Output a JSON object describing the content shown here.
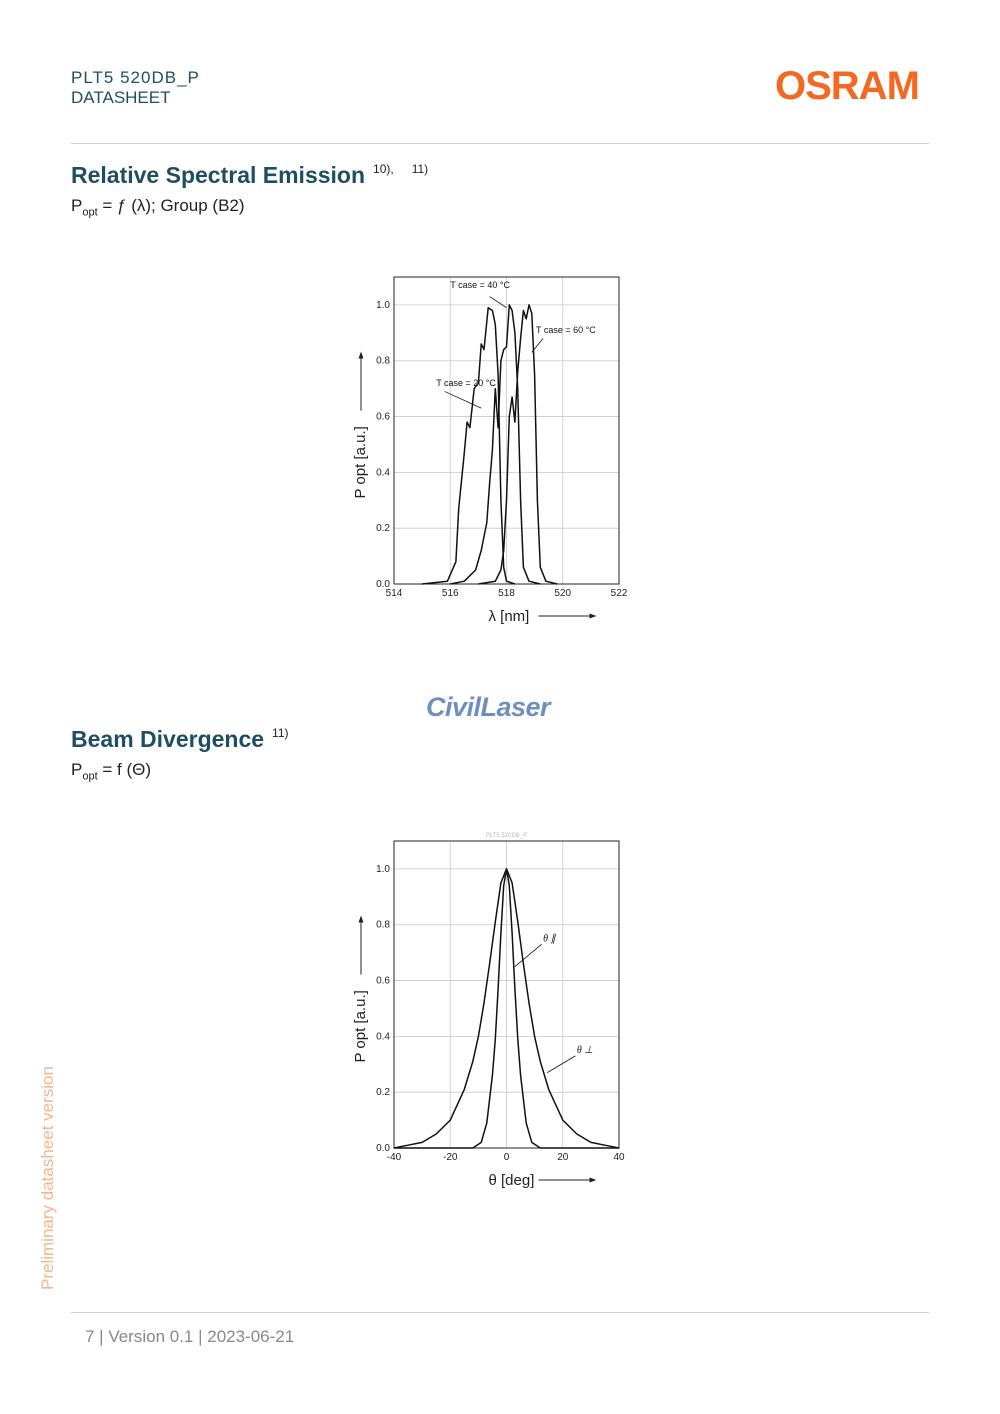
{
  "header": {
    "product": "PLT5 520DB_P",
    "doc_type": "DATASHEET",
    "logo_text": "OSRAM",
    "logo_color": "#f26a21"
  },
  "section1": {
    "title": "Relative Spectral Emission",
    "ref1": "10),",
    "ref2": "11)",
    "formula_main": "P",
    "formula_sub": "opt",
    "formula_rest": " = ƒ (λ); Group (B2)"
  },
  "section2": {
    "title": "Beam Divergence",
    "ref1": "11)",
    "formula_main": "P",
    "formula_sub": "opt",
    "formula_rest": " = f (Θ)"
  },
  "watermark_text": "CivilLaser",
  "side_note": "Preliminary datasheet version",
  "footer": "7  | Version 0.1 | 2023-06-21",
  "chart_data": [
    {
      "type": "line",
      "title": "",
      "xlabel": "λ [nm]",
      "ylabel": "P opt [a.u.]",
      "xlim": [
        514,
        522
      ],
      "ylim": [
        0,
        1.1
      ],
      "xticks": [
        "514",
        "516",
        "518",
        "520",
        "522"
      ],
      "yticks": [
        "0.0",
        "0.2",
        "0.4",
        "0.6",
        "0.8",
        "1.0"
      ],
      "grid": true,
      "series": [
        {
          "name": "T case = 20 °C",
          "x": [
            515.0,
            515.9,
            516.2,
            516.3,
            516.5,
            516.6,
            516.7,
            516.85,
            517.0,
            517.1,
            517.2,
            517.35,
            517.5,
            517.6,
            517.7,
            517.8,
            517.9,
            518.0,
            518.3
          ],
          "y": [
            0.0,
            0.01,
            0.08,
            0.27,
            0.47,
            0.58,
            0.56,
            0.7,
            0.72,
            0.86,
            0.84,
            0.99,
            0.98,
            0.93,
            0.75,
            0.3,
            0.06,
            0.01,
            0.0
          ]
        },
        {
          "name": "T case = 40 °C",
          "x": [
            516.0,
            516.5,
            516.9,
            517.1,
            517.3,
            517.4,
            517.5,
            517.6,
            517.7,
            517.8,
            517.9,
            518.0,
            518.1,
            518.2,
            518.3,
            518.4,
            518.5,
            518.6,
            518.8,
            519.2
          ],
          "y": [
            0.0,
            0.01,
            0.05,
            0.12,
            0.22,
            0.36,
            0.48,
            0.7,
            0.56,
            0.8,
            0.84,
            0.85,
            1.0,
            0.98,
            0.9,
            0.7,
            0.3,
            0.06,
            0.01,
            0.0
          ]
        },
        {
          "name": "T case = 60 °C",
          "x": [
            517.0,
            517.6,
            517.8,
            517.9,
            518.0,
            518.1,
            518.2,
            518.3,
            518.4,
            518.5,
            518.6,
            518.7,
            518.8,
            518.9,
            519.0,
            519.1,
            519.2,
            519.4,
            519.8
          ],
          "y": [
            0.0,
            0.01,
            0.05,
            0.12,
            0.3,
            0.6,
            0.67,
            0.58,
            0.76,
            0.88,
            0.98,
            0.95,
            1.0,
            0.97,
            0.75,
            0.3,
            0.06,
            0.01,
            0.0
          ]
        }
      ]
    },
    {
      "type": "line",
      "title": "PLT5 520DB_P",
      "xlabel": "θ [deg]",
      "ylabel": "P opt [a.u.]",
      "xlim": [
        -40,
        40
      ],
      "ylim": [
        0,
        1.1
      ],
      "xticks": [
        "-40",
        "-20",
        "0",
        "20",
        "40"
      ],
      "yticks": [
        "0.0",
        "0.2",
        "0.4",
        "0.6",
        "0.8",
        "1.0"
      ],
      "grid": true,
      "series": [
        {
          "name": "θ ∥",
          "x": [
            -40,
            -20,
            -12,
            -9,
            -7,
            -5,
            -4,
            -3,
            -2,
            -1,
            0,
            1,
            2,
            3,
            4,
            5,
            7,
            9,
            12,
            20,
            40
          ],
          "y": [
            0.0,
            0.0,
            0.0,
            0.02,
            0.09,
            0.26,
            0.39,
            0.57,
            0.77,
            0.94,
            1.0,
            0.94,
            0.77,
            0.57,
            0.39,
            0.26,
            0.09,
            0.02,
            0.0,
            0.0,
            0.0
          ]
        },
        {
          "name": "θ ⊥",
          "x": [
            -40,
            -35,
            -30,
            -25,
            -20,
            -15,
            -12,
            -10,
            -8,
            -6,
            -4,
            -2,
            0,
            2,
            4,
            6,
            8,
            10,
            12,
            15,
            20,
            25,
            30,
            35,
            40
          ],
          "y": [
            0.0,
            0.01,
            0.02,
            0.05,
            0.1,
            0.21,
            0.31,
            0.4,
            0.52,
            0.66,
            0.81,
            0.95,
            1.0,
            0.95,
            0.81,
            0.66,
            0.52,
            0.4,
            0.31,
            0.21,
            0.1,
            0.05,
            0.02,
            0.01,
            0.0
          ]
        }
      ]
    }
  ]
}
